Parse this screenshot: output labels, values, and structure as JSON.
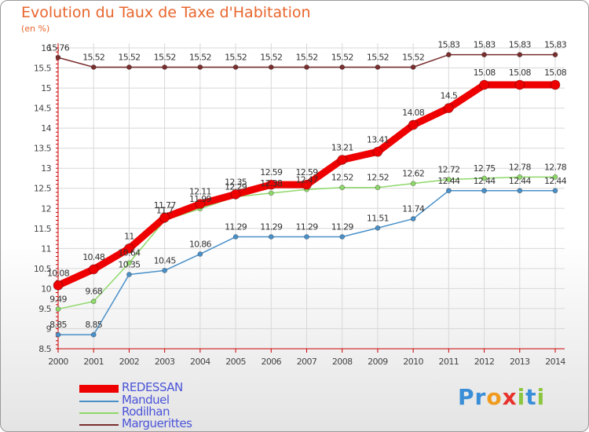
{
  "header": {
    "title": "Evolution du Taux de Taxe d'Habitation",
    "unit": "(en %)"
  },
  "colors": {
    "REDESSAN": "#ee0000",
    "Manduel": "#4a90c8",
    "Rodilhan": "#8fd86a",
    "Marguerittes": "#7a2e2e",
    "axis": "#cc0000",
    "grid": "#d8d8d8",
    "legend_text": "#4a54d8",
    "title": "#e8652c"
  },
  "chart_data": {
    "type": "line",
    "title": "Evolution du Taux de Taxe d'Habitation",
    "ylabel": "(en %)",
    "xlabel": "",
    "ylim": [
      8.5,
      16
    ],
    "yticks": [
      "8.5",
      "9",
      "9.5",
      "10",
      "10.5",
      "11",
      "11.5",
      "12",
      "12.5",
      "13",
      "13.5",
      "14",
      "14.5",
      "15",
      "15.5",
      "16"
    ],
    "x": [
      "2000",
      "2001",
      "2002",
      "2003",
      "2004",
      "2005",
      "2006",
      "2007",
      "2008",
      "2009",
      "2010",
      "2011",
      "2012",
      "2013",
      "2014"
    ],
    "grid": true,
    "legend_position": "bottom-left",
    "series": [
      {
        "name": "REDESSAN",
        "values": [
          10.08,
          10.48,
          11,
          11.77,
          12.11,
          12.35,
          12.59,
          12.59,
          13.21,
          13.41,
          14.08,
          14.5,
          15.08,
          15.08,
          15.08
        ],
        "labels": [
          "10.08",
          "10.48",
          "11",
          "11.77",
          "12.11",
          "12.35",
          "12.59",
          "12.59",
          "13.21",
          "13.41",
          "14.08",
          "14.5",
          "15.08",
          "15.08",
          "15.08"
        ]
      },
      {
        "name": "Manduel",
        "values": [
          8.85,
          8.85,
          10.35,
          10.45,
          10.86,
          11.29,
          11.29,
          11.29,
          11.29,
          11.51,
          11.74,
          12.44,
          12.44,
          12.44,
          12.44
        ],
        "labels": [
          "8.85",
          "8.85",
          "10.35",
          "10.45",
          "10.86",
          "11.29",
          "11.29",
          "11.29",
          "11.29",
          "11.51",
          "11.74",
          "12.44",
          "12.44",
          "12.44",
          "12.44"
        ]
      },
      {
        "name": "Rodilhan",
        "values": [
          9.49,
          9.68,
          10.64,
          11.7,
          11.99,
          12.29,
          12.38,
          12.47,
          12.52,
          12.52,
          12.62,
          12.72,
          12.75,
          12.78,
          12.78
        ],
        "labels": [
          "9.49",
          "9.68",
          "10.64",
          "11.7",
          "11.99",
          "12.29",
          "12.38",
          "12.47",
          "12.52",
          "12.52",
          "12.62",
          "12.72",
          "12.75",
          "12.78",
          "12.78"
        ]
      },
      {
        "name": "Marguerittes",
        "values": [
          15.76,
          15.52,
          15.52,
          15.52,
          15.52,
          15.52,
          15.52,
          15.52,
          15.52,
          15.52,
          15.52,
          15.83,
          15.83,
          15.83,
          15.83
        ],
        "labels": [
          "15.76",
          "15.52",
          "15.52",
          "15.52",
          "15.52",
          "15.52",
          "15.52",
          "15.52",
          "15.52",
          "15.52",
          "15.52",
          "15.83",
          "15.83",
          "15.83",
          "15.83"
        ]
      }
    ]
  },
  "legend": {
    "items": [
      {
        "label": "REDESSAN"
      },
      {
        "label": "Manduel"
      },
      {
        "label": "Rodilhan"
      },
      {
        "label": "Marguerittes"
      }
    ]
  },
  "logo": {
    "letters": [
      {
        "ch": "P",
        "color": "#3a8ed8"
      },
      {
        "ch": "r",
        "color": "#3a8ed8"
      },
      {
        "ch": "o",
        "color": "#f09a1e"
      },
      {
        "ch": "x",
        "color": "#e8322c"
      },
      {
        "ch": "i",
        "color": "#8cc63f"
      },
      {
        "ch": "t",
        "color": "#3a8ed8"
      },
      {
        "ch": "i",
        "color": "#8cc63f"
      }
    ]
  }
}
